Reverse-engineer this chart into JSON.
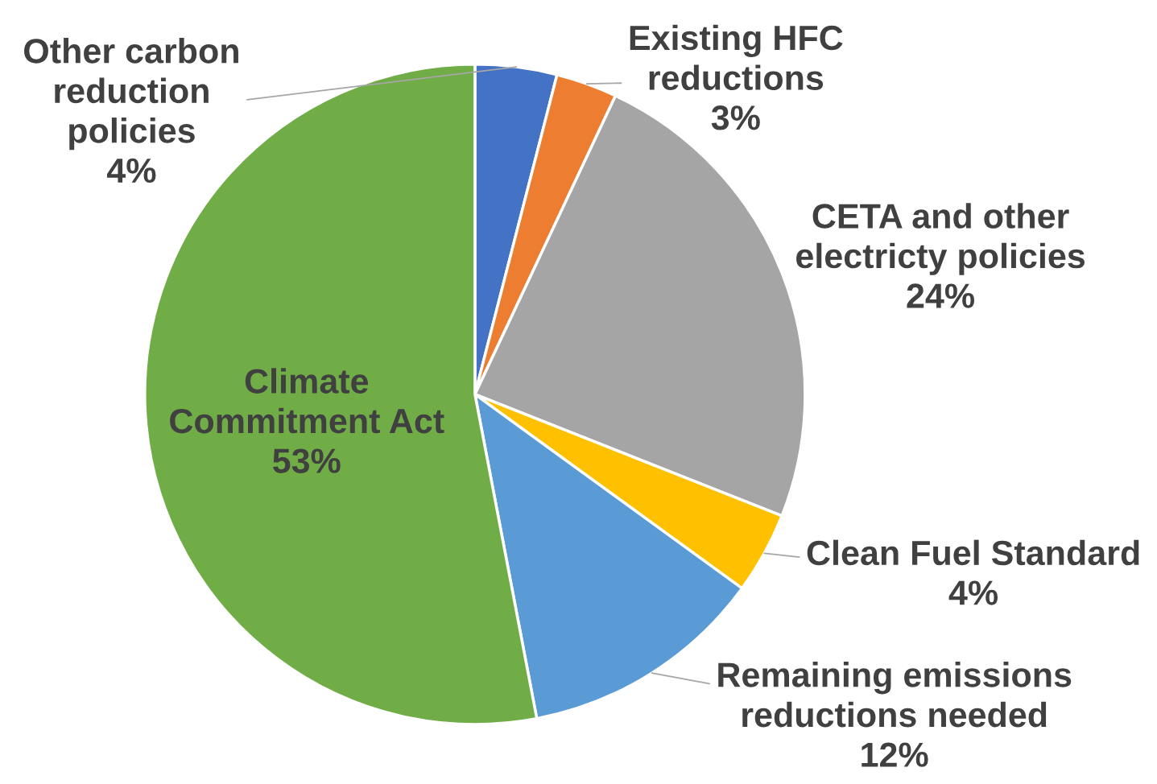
{
  "chart_data": {
    "type": "pie",
    "categories": [
      "Other carbon\nreduction\npolicies",
      "Existing HFC\nreductions",
      "CETA and other\nelectricty policies",
      "Clean Fuel Standard",
      "Remaining emissions\nreductions needed",
      "Climate\nCommitment Act"
    ],
    "values": [
      4,
      3,
      24,
      4,
      12,
      53
    ],
    "colors": [
      "#4472c4",
      "#ed7d31",
      "#a5a5a5",
      "#ffc000",
      "#5b9bd5",
      "#70ad47"
    ],
    "value_labels": [
      "4%",
      "3%",
      "24%",
      "4%",
      "12%",
      "53%"
    ]
  }
}
